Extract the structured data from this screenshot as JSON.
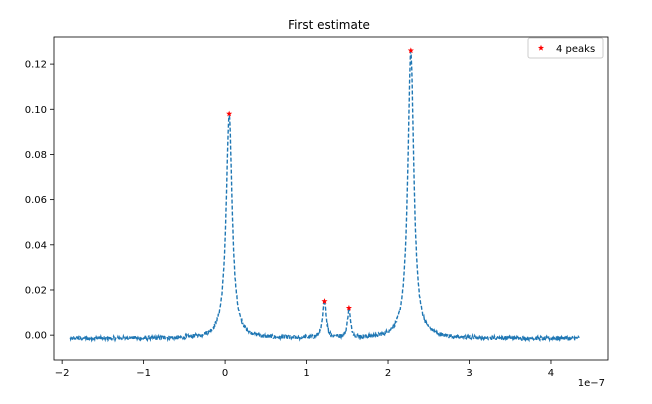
{
  "chart_data": {
    "type": "line",
    "title": "First estimate",
    "xlabel": "",
    "ylabel": "",
    "x_scale_label": "1e−7",
    "xlim": [
      -2.1,
      4.7
    ],
    "ylim": [
      -0.011,
      0.132
    ],
    "x_ticks": [
      -2,
      -1,
      0,
      1,
      2,
      3,
      4
    ],
    "x_tick_labels": [
      "−2",
      "−1",
      "0",
      "1",
      "2",
      "3",
      "4"
    ],
    "y_ticks": [
      0.0,
      0.02,
      0.04,
      0.06,
      0.08,
      0.1,
      0.12
    ],
    "y_tick_labels": [
      "0.00",
      "0.02",
      "0.04",
      "0.06",
      "0.08",
      "0.10",
      "0.12"
    ],
    "grid": false,
    "legend_position": "top-right",
    "series": [
      {
        "kind": "line",
        "style": "dashed",
        "color": "#1f77b4",
        "x_range": [
          -1.9,
          4.35
        ],
        "baseline": -0.0015,
        "noise_amplitude": 0.0009,
        "peaks": [
          {
            "x": 0.05,
            "y": 0.097,
            "width": 0.045
          },
          {
            "x": 1.22,
            "y": 0.015,
            "width": 0.025
          },
          {
            "x": 1.52,
            "y": 0.011,
            "width": 0.022
          },
          {
            "x": 2.28,
            "y": 0.125,
            "width": 0.045
          }
        ]
      },
      {
        "name": "4 peaks",
        "kind": "scatter",
        "marker": "star",
        "color": "#ff0000",
        "x": [
          0.05,
          1.22,
          1.52,
          2.28
        ],
        "y": [
          0.098,
          0.015,
          0.012,
          0.126
        ]
      }
    ]
  }
}
